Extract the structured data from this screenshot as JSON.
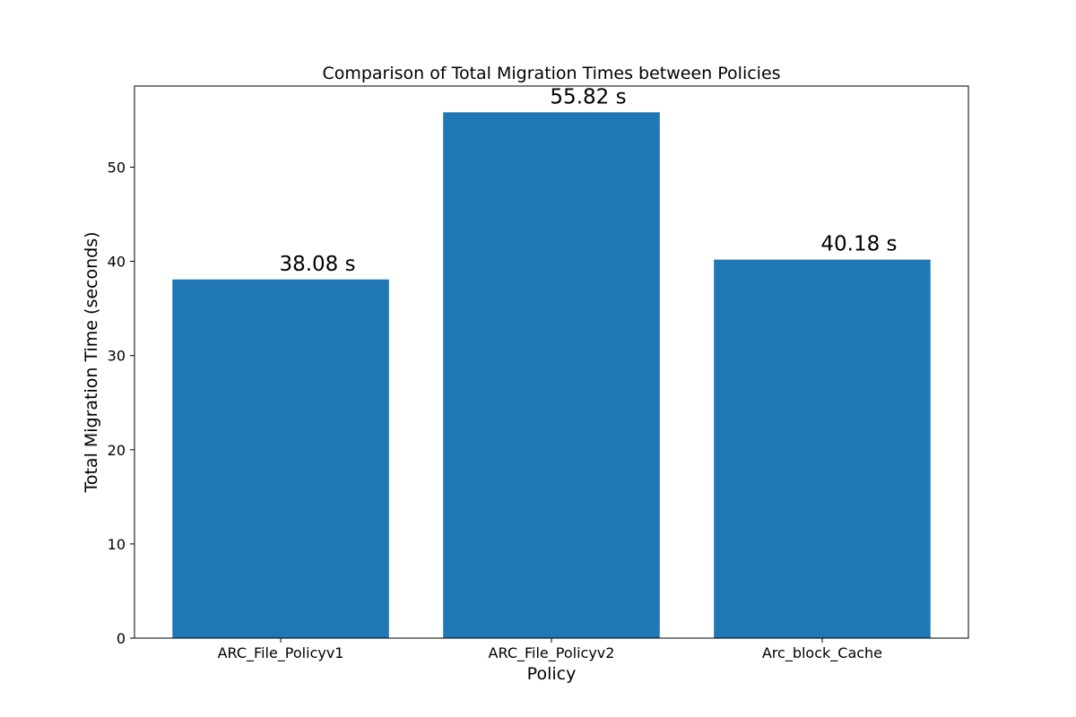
{
  "chart_data": {
    "type": "bar",
    "title": "Comparison of Total Migration Times between Policies",
    "xlabel": "Policy",
    "ylabel": "Total Migration Time (seconds)",
    "categories": [
      "ARC_File_Policyv1",
      "ARC_File_Policyv2",
      "Arc_block_Cache"
    ],
    "values": [
      38.08,
      55.82,
      40.18
    ],
    "data_labels": [
      "38.08 s",
      "55.82 s",
      "40.18 s"
    ],
    "ylim": [
      0,
      58.61
    ],
    "yticks": [
      0,
      10,
      20,
      30,
      40,
      50
    ],
    "bar_color": "#1f77b4",
    "grid": false,
    "legend": "none"
  }
}
